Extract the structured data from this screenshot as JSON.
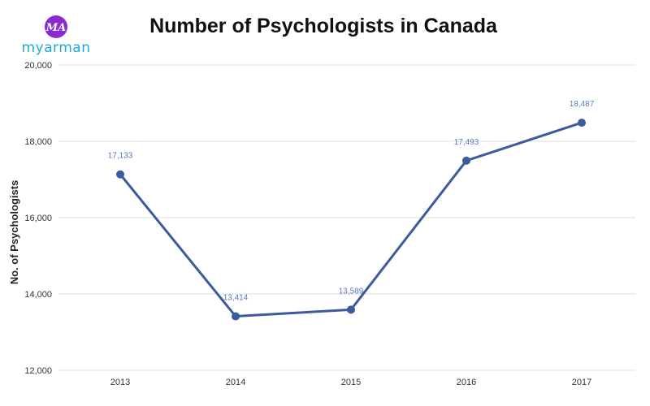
{
  "brand": {
    "badge_text": "MA",
    "name": "myarman",
    "colors": {
      "badge": "#8a2ad0",
      "text": "#1fa9d6"
    }
  },
  "chart_data": {
    "type": "line",
    "title": "Number of Psychologists in Canada",
    "xlabel": "",
    "ylabel": "No. of Psychologists",
    "categories": [
      "2013",
      "2014",
      "2015",
      "2016",
      "2017"
    ],
    "series": [
      {
        "values": [
          17133,
          13414,
          13589,
          17493,
          18487
        ],
        "data_labels": [
          "17,133",
          "13,414",
          "13,589",
          "17,493",
          "18,487"
        ],
        "color": "#3d5a9e"
      }
    ],
    "ylim": [
      12000,
      20000
    ],
    "yticks": [
      12000,
      14000,
      16000,
      18000,
      20000
    ],
    "ytick_labels": [
      "12,000",
      "14,000",
      "16,000",
      "18,000",
      "20,000"
    ],
    "grid": true,
    "legend": "none",
    "label_color": "#5b7bc0"
  }
}
